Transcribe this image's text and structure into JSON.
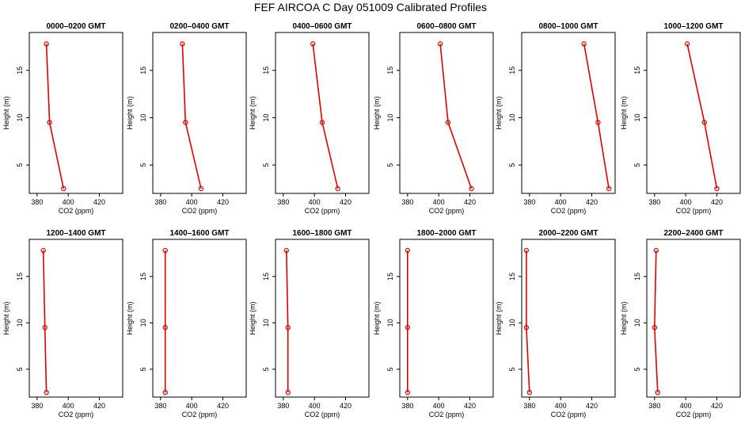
{
  "figure": {
    "title": "FEF AIRCOA C  Day 051009  Calibrated Profiles"
  },
  "colors": {
    "series": "#dd0000",
    "axis": "#000000",
    "background": "#ffffff"
  },
  "chart_data": [
    {
      "type": "line",
      "title": "0000–0200 GMT",
      "xlabel": "CO2 (ppm)",
      "ylabel": "Height (m)",
      "xlim": [
        375,
        435
      ],
      "ylim": [
        2,
        19
      ],
      "xticks": [
        "380",
        "400",
        "420"
      ],
      "yticks": [
        "5",
        "10",
        "15"
      ],
      "legend": "none",
      "grid": false,
      "series": [
        {
          "x": [
            386,
            388,
            397
          ],
          "y": [
            17.8,
            9.5,
            2.5
          ]
        }
      ]
    },
    {
      "type": "line",
      "title": "0200–0400 GMT",
      "xlabel": "CO2 (ppm)",
      "ylabel": "Height (m)",
      "xlim": [
        375,
        435
      ],
      "ylim": [
        2,
        19
      ],
      "xticks": [
        "380",
        "400",
        "420"
      ],
      "yticks": [
        "5",
        "10",
        "15"
      ],
      "legend": "none",
      "grid": false,
      "series": [
        {
          "x": [
            394,
            396,
            406
          ],
          "y": [
            17.8,
            9.5,
            2.5
          ]
        }
      ]
    },
    {
      "type": "line",
      "title": "0400–0600 GMT",
      "xlabel": "CO2 (ppm)",
      "ylabel": "Height (m)",
      "xlim": [
        375,
        435
      ],
      "ylim": [
        2,
        19
      ],
      "xticks": [
        "380",
        "400",
        "420"
      ],
      "yticks": [
        "5",
        "10",
        "15"
      ],
      "legend": "none",
      "grid": false,
      "series": [
        {
          "x": [
            399,
            405,
            415
          ],
          "y": [
            17.8,
            9.5,
            2.5
          ]
        }
      ]
    },
    {
      "type": "line",
      "title": "0600–0800 GMT",
      "xlabel": "CO2 (ppm)",
      "ylabel": "Height (m)",
      "xlim": [
        375,
        435
      ],
      "ylim": [
        2,
        19
      ],
      "xticks": [
        "380",
        "400",
        "420"
      ],
      "yticks": [
        "5",
        "10",
        "15"
      ],
      "legend": "none",
      "grid": false,
      "series": [
        {
          "x": [
            401,
            406,
            421
          ],
          "y": [
            17.8,
            9.5,
            2.5
          ]
        }
      ]
    },
    {
      "type": "line",
      "title": "0800–1000 GMT",
      "xlabel": "CO2 (ppm)",
      "ylabel": "Height (m)",
      "xlim": [
        375,
        435
      ],
      "ylim": [
        2,
        19
      ],
      "xticks": [
        "380",
        "400",
        "420"
      ],
      "yticks": [
        "5",
        "10",
        "15"
      ],
      "legend": "none",
      "grid": false,
      "series": [
        {
          "x": [
            415,
            424,
            431
          ],
          "y": [
            17.8,
            9.5,
            2.5
          ]
        }
      ]
    },
    {
      "type": "line",
      "title": "1000–1200 GMT",
      "xlabel": "CO2 (ppm)",
      "ylabel": "Height (m)",
      "xlim": [
        375,
        435
      ],
      "ylim": [
        2,
        19
      ],
      "xticks": [
        "380",
        "400",
        "420"
      ],
      "yticks": [
        "5",
        "10",
        "15"
      ],
      "legend": "none",
      "grid": false,
      "series": [
        {
          "x": [
            401,
            412,
            420
          ],
          "y": [
            17.8,
            9.5,
            2.5
          ]
        }
      ]
    },
    {
      "type": "line",
      "title": "1200–1400 GMT",
      "xlabel": "CO2 (ppm)",
      "ylabel": "Height (m)",
      "xlim": [
        375,
        435
      ],
      "ylim": [
        2,
        19
      ],
      "xticks": [
        "380",
        "400",
        "420"
      ],
      "yticks": [
        "5",
        "10",
        "15"
      ],
      "legend": "none",
      "grid": false,
      "series": [
        {
          "x": [
            384,
            385,
            386
          ],
          "y": [
            17.8,
            9.5,
            2.5
          ]
        }
      ]
    },
    {
      "type": "line",
      "title": "1400–1600 GMT",
      "xlabel": "CO2 (ppm)",
      "ylabel": "Height (m)",
      "xlim": [
        375,
        435
      ],
      "ylim": [
        2,
        19
      ],
      "xticks": [
        "380",
        "400",
        "420"
      ],
      "yticks": [
        "5",
        "10",
        "15"
      ],
      "legend": "none",
      "grid": false,
      "series": [
        {
          "x": [
            383,
            383,
            383
          ],
          "y": [
            17.8,
            9.5,
            2.5
          ]
        }
      ]
    },
    {
      "type": "line",
      "title": "1600–1800 GMT",
      "xlabel": "CO2 (ppm)",
      "ylabel": "Height (m)",
      "xlim": [
        375,
        435
      ],
      "ylim": [
        2,
        19
      ],
      "xticks": [
        "380",
        "400",
        "420"
      ],
      "yticks": [
        "5",
        "10",
        "15"
      ],
      "legend": "none",
      "grid": false,
      "series": [
        {
          "x": [
            382,
            383,
            383
          ],
          "y": [
            17.8,
            9.5,
            2.5
          ]
        }
      ]
    },
    {
      "type": "line",
      "title": "1800–2000 GMT",
      "xlabel": "CO2 (ppm)",
      "ylabel": "Height (m)",
      "xlim": [
        375,
        435
      ],
      "ylim": [
        2,
        19
      ],
      "xticks": [
        "380",
        "400",
        "420"
      ],
      "yticks": [
        "5",
        "10",
        "15"
      ],
      "legend": "none",
      "grid": false,
      "series": [
        {
          "x": [
            380,
            380,
            380
          ],
          "y": [
            17.8,
            9.5,
            2.5
          ]
        }
      ]
    },
    {
      "type": "line",
      "title": "2000–2200 GMT",
      "xlabel": "CO2 (ppm)",
      "ylabel": "Height (m)",
      "xlim": [
        375,
        435
      ],
      "ylim": [
        2,
        19
      ],
      "xticks": [
        "380",
        "400",
        "420"
      ],
      "yticks": [
        "5",
        "10",
        "15"
      ],
      "legend": "none",
      "grid": false,
      "series": [
        {
          "x": [
            378,
            378,
            380
          ],
          "y": [
            17.8,
            9.5,
            2.5
          ]
        }
      ]
    },
    {
      "type": "line",
      "title": "2200–2400 GMT",
      "xlabel": "CO2 (ppm)",
      "ylabel": "Height (m)",
      "xlim": [
        375,
        435
      ],
      "ylim": [
        2,
        19
      ],
      "xticks": [
        "380",
        "400",
        "420"
      ],
      "yticks": [
        "5",
        "10",
        "15"
      ],
      "legend": "none",
      "grid": false,
      "series": [
        {
          "x": [
            381,
            380,
            382
          ],
          "y": [
            17.8,
            9.5,
            2.5
          ]
        }
      ]
    }
  ]
}
